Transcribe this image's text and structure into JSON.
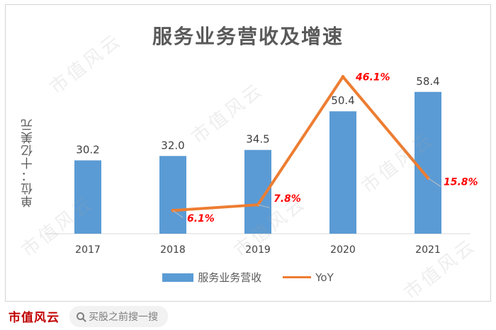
{
  "chart_data": {
    "type": "bar",
    "title": "服务业务营收及增速",
    "unit_label": "单位：十亿美元",
    "categories": [
      "2017",
      "2018",
      "2019",
      "2020",
      "2021"
    ],
    "series": [
      {
        "name": "服务业务营收",
        "type": "bar",
        "values": [
          30.2,
          32.0,
          34.5,
          50.4,
          58.4
        ],
        "labels": [
          "30.2",
          "32.0",
          "34.5",
          "50.4",
          "58.4"
        ],
        "color": "#5b9bd5"
      },
      {
        "name": "YoY",
        "type": "line",
        "values": [
          null,
          6.1,
          7.8,
          46.1,
          15.8
        ],
        "labels": [
          "",
          "6.1%",
          "7.8%",
          "46.1%",
          "15.8%"
        ],
        "color": "#ed7d31"
      }
    ],
    "bar_axis_max": 70,
    "line_axis_range": [
      0,
      50
    ],
    "grid": false,
    "legend_position": "bottom"
  },
  "footer": {
    "brand": "市值风云",
    "search_text": "买股之前搜一搜"
  },
  "watermark_text": "市值风云"
}
